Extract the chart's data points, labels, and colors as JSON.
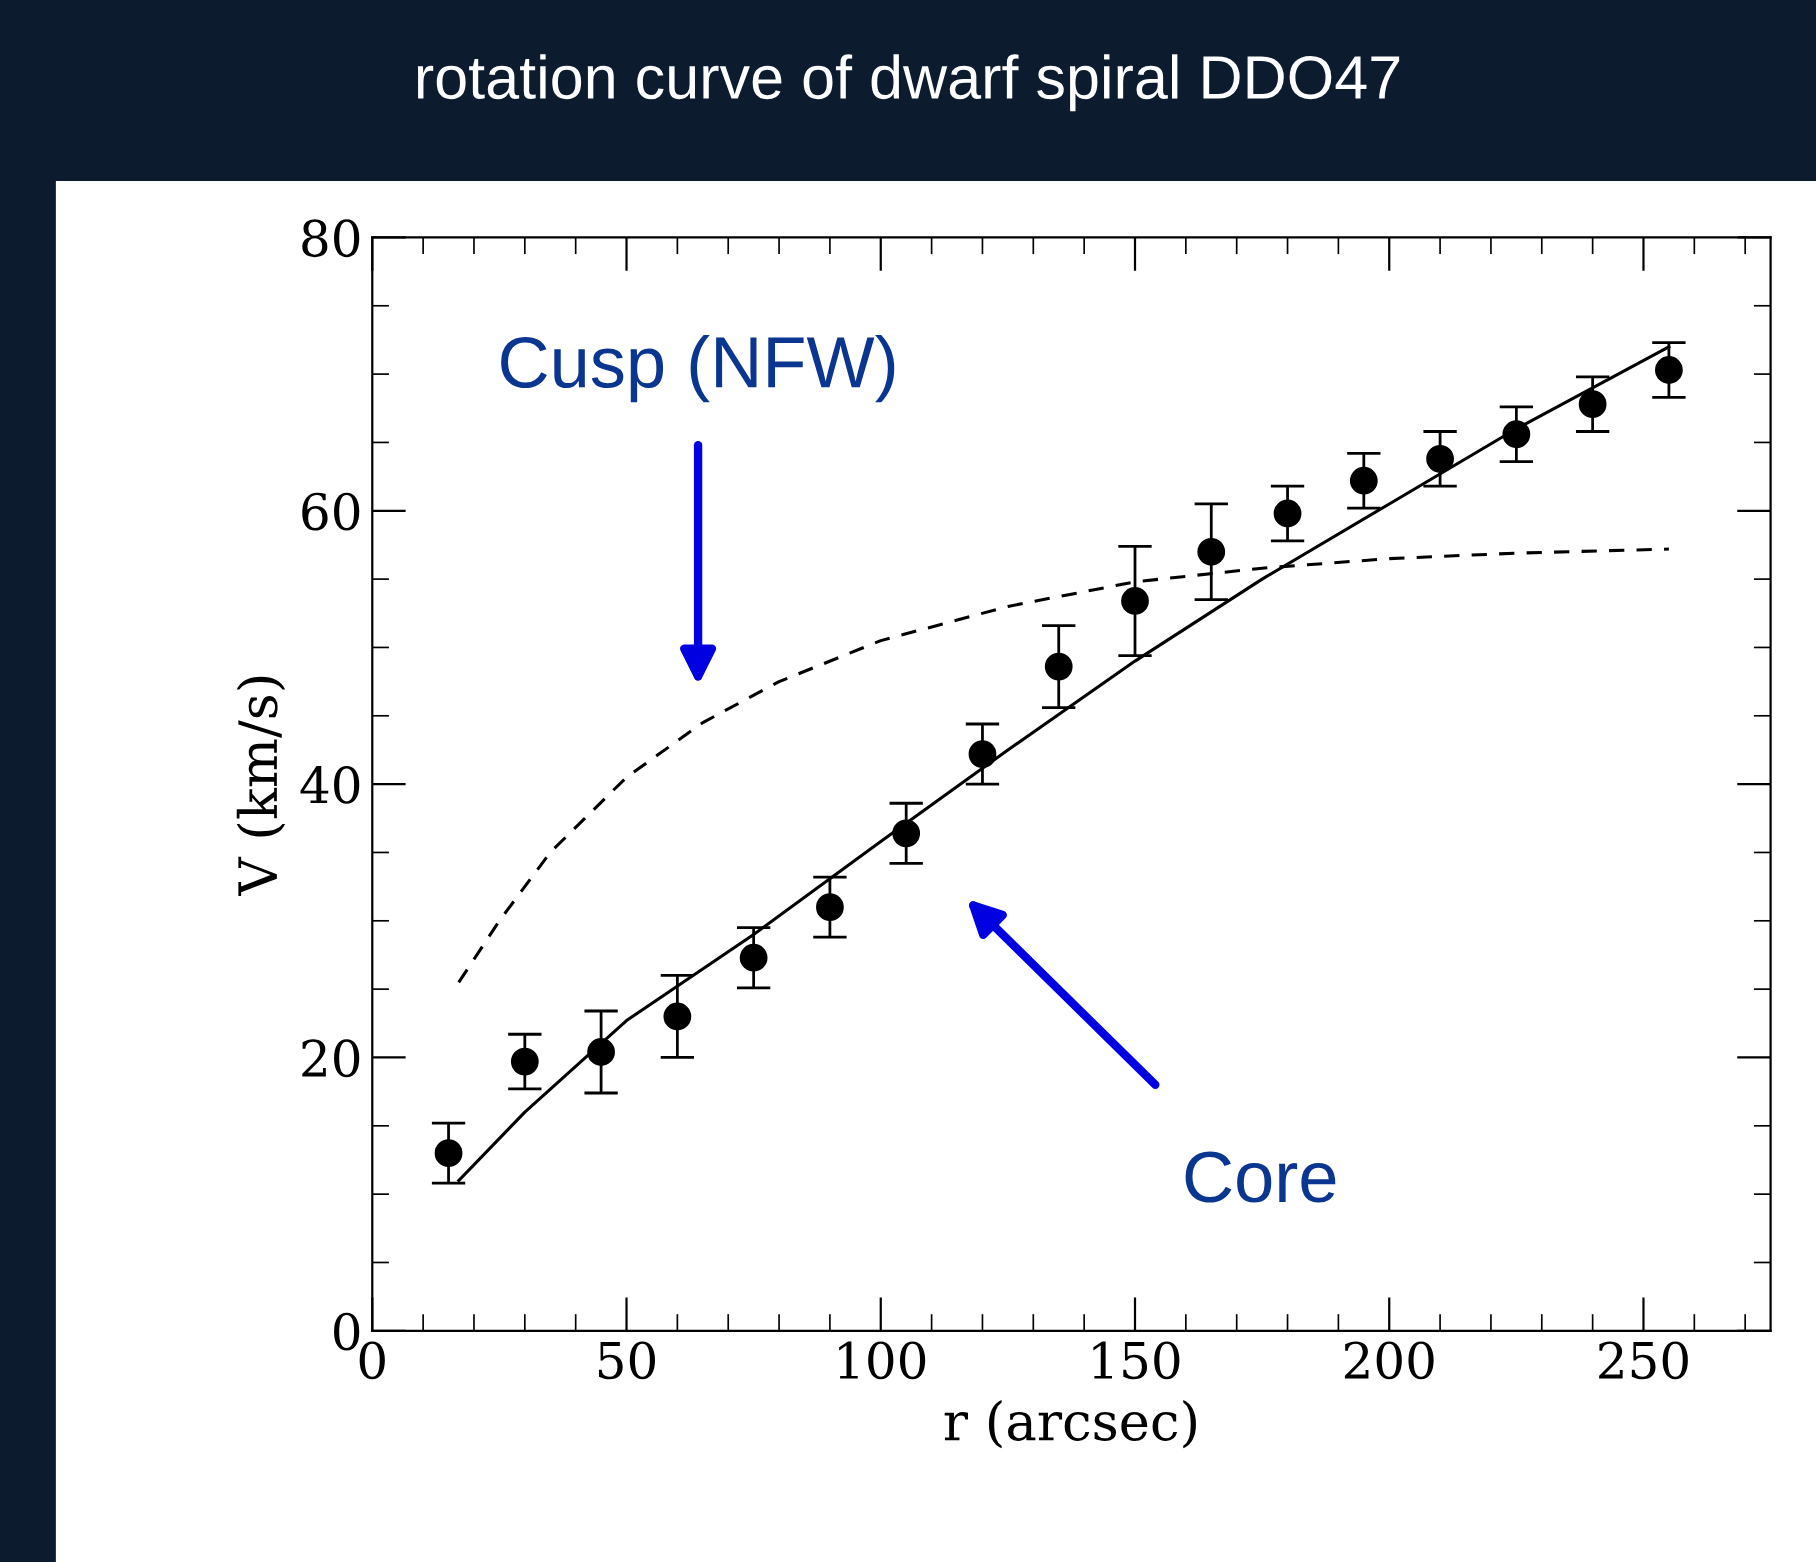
{
  "chart_data": {
    "type": "scatter",
    "title": "rotation curve of dwarf spiral DDO47",
    "xlabel": "r (arcsec)",
    "ylabel": "V (km/s)",
    "xlim": [
      0,
      275
    ],
    "ylim": [
      0,
      80
    ],
    "xticks": [
      0,
      50,
      100,
      150,
      200,
      250
    ],
    "yticks": [
      0,
      20,
      40,
      60,
      80
    ],
    "grid": false,
    "legend": false,
    "series": [
      {
        "color": "#000000",
        "marker": "circle",
        "x": [
          15,
          30,
          45,
          60,
          75,
          90,
          105,
          120,
          135,
          150,
          165,
          180,
          195,
          210,
          225,
          240,
          255
        ],
        "values": [
          13,
          19.7,
          20.4,
          23,
          27.3,
          31,
          36.4,
          42.2,
          48.6,
          53.4,
          57,
          59.8,
          62.2,
          63.8,
          65.6,
          67.8,
          70.3
        ],
        "errors": [
          2.2,
          2,
          3,
          3,
          2.2,
          2.2,
          2.2,
          2.2,
          3,
          4,
          3.5,
          2,
          2,
          2,
          2,
          2,
          2
        ]
      },
      {
        "type": "line",
        "color": "#000000",
        "line_style": "solid",
        "x": [
          17,
          30,
          50,
          75,
          100,
          125,
          150,
          175,
          200,
          225,
          255
        ],
        "values": [
          11,
          16,
          22.7,
          29,
          35.8,
          42.5,
          49,
          55,
          60.5,
          66,
          72
        ]
      },
      {
        "type": "line",
        "color": "#000000",
        "line_style": "dashed",
        "x": [
          17,
          25,
          35,
          50,
          65,
          80,
          100,
          125,
          150,
          175,
          200,
          225,
          255
        ],
        "values": [
          25.5,
          30,
          35,
          40.5,
          44.5,
          47.5,
          50.5,
          53,
          54.8,
          55.8,
          56.5,
          56.9,
          57.2
        ]
      }
    ],
    "annotations": [
      "Cusp (NFW)",
      "Core"
    ]
  }
}
